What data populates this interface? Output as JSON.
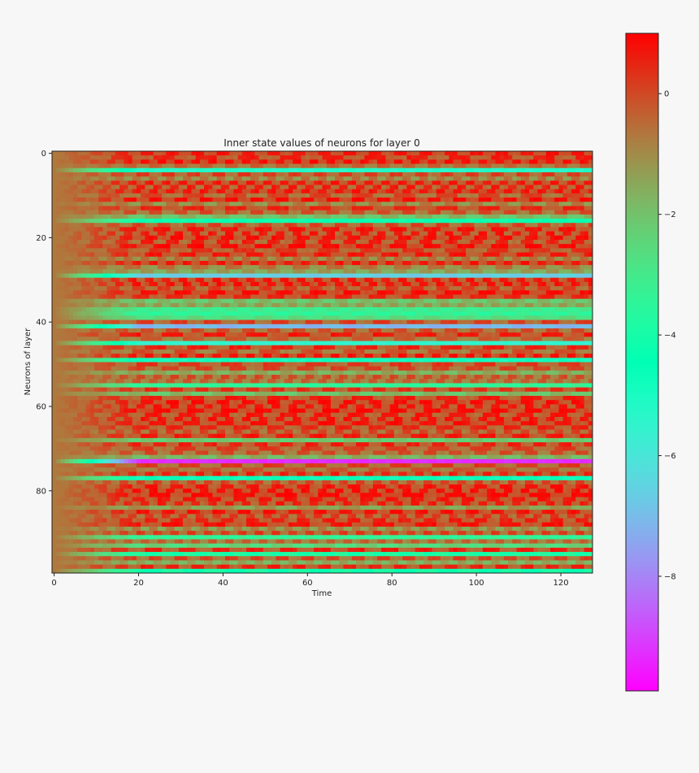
{
  "chart_data": {
    "type": "heatmap",
    "title": "Inner state values of neurons for layer 0",
    "xlabel": "Time",
    "ylabel": "Neurons of layer",
    "x_range": [
      0,
      127
    ],
    "y_range": [
      0,
      99
    ],
    "n_time_steps": 128,
    "n_neurons": 100,
    "x_ticks": [
      0,
      20,
      40,
      60,
      80,
      100,
      120
    ],
    "y_ticks": [
      0,
      20,
      40,
      60,
      80
    ],
    "colormap": "rainbow",
    "colorbar": {
      "vmin": -9.9,
      "vmax": 1.0,
      "ticks": [
        0,
        -2,
        -4,
        -6,
        -8
      ],
      "tick_labels": [
        "0",
        "−2",
        "−4",
        "−6",
        "−8"
      ]
    },
    "background": "#f7f7f7",
    "neuron_baseline_values": [
      0.3,
      0.1,
      0.4,
      -0.6,
      -5.2,
      -0.2,
      -0.9,
      0.2,
      0.0,
      0.3,
      -0.3,
      0.4,
      -1.0,
      0.1,
      -0.4,
      -1.9,
      -4.2,
      -0.3,
      0.2,
      0.1,
      0.3,
      0.0,
      0.4,
      -0.1,
      0.2,
      -0.8,
      0.3,
      -0.9,
      -1.4,
      -6.6,
      0.2,
      0.3,
      -0.2,
      0.4,
      0.1,
      -2.0,
      -1.5,
      -3.1,
      -3.4,
      -2.6,
      -0.2,
      -7.1,
      -0.4,
      0.2,
      -0.6,
      -5.5,
      0.1,
      -0.5,
      0.3,
      -4.8,
      -0.1,
      -0.3,
      -1.6,
      -0.4,
      -0.6,
      -3.4,
      0.0,
      -1.9,
      0.1,
      0.3,
      0.2,
      0.4,
      0.1,
      0.2,
      0.3,
      0.0,
      -0.3,
      0.2,
      -2.2,
      0.1,
      -0.2,
      -0.4,
      -1.7,
      -9.3,
      -0.2,
      -0.5,
      0.1,
      -4.7,
      -0.3,
      0.2,
      0.3,
      0.4,
      0.2,
      0.1,
      -1.3,
      0.3,
      -0.2,
      0.1,
      0.3,
      -1.1,
      -0.2,
      -3.4,
      -0.6,
      -2.5,
      0.1,
      -3.9,
      -0.3,
      -1.6,
      0.1,
      -4.1
    ],
    "neuron_oscillation_amplitude": [
      0.6,
      0.7,
      0.6,
      0.4,
      0.2,
      0.6,
      0.5,
      0.7,
      0.8,
      0.6,
      0.6,
      0.7,
      0.5,
      0.6,
      0.6,
      0.4,
      0.2,
      0.6,
      0.7,
      0.8,
      0.7,
      0.8,
      0.7,
      0.6,
      0.7,
      0.5,
      0.6,
      0.5,
      0.4,
      0.2,
      0.7,
      0.7,
      0.6,
      0.7,
      0.6,
      0.4,
      0.4,
      0.3,
      0.3,
      0.3,
      0.6,
      0.2,
      0.6,
      0.7,
      0.5,
      0.2,
      0.7,
      0.6,
      0.7,
      0.2,
      0.6,
      0.6,
      0.4,
      0.6,
      0.5,
      0.3,
      0.6,
      0.4,
      0.7,
      0.7,
      0.7,
      0.7,
      0.8,
      0.7,
      0.7,
      0.7,
      0.6,
      0.7,
      0.3,
      0.7,
      0.6,
      0.6,
      0.4,
      0.1,
      0.6,
      0.5,
      0.7,
      0.2,
      0.6,
      0.7,
      0.7,
      0.7,
      0.7,
      0.7,
      0.4,
      0.7,
      0.6,
      0.7,
      0.7,
      0.5,
      0.6,
      0.3,
      0.5,
      0.4,
      0.7,
      0.3,
      0.6,
      0.4,
      0.7,
      0.3
    ],
    "initial_value": -0.7,
    "settling_time_steps": 20
  }
}
